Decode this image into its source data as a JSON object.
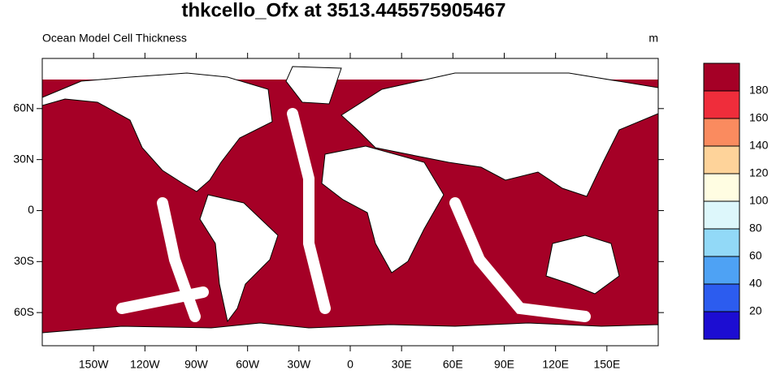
{
  "title": "thkcello_Ofx at 3513.445575905467",
  "left_string": "Ocean Model Cell Thickness",
  "right_string": "m",
  "map": {
    "xlim": [
      -180,
      180
    ],
    "ylim": [
      -79.5,
      89.5
    ],
    "xticks": [
      {
        "value": -150,
        "label": "150W"
      },
      {
        "value": -120,
        "label": "120W"
      },
      {
        "value": -90,
        "label": "90W"
      },
      {
        "value": -60,
        "label": "60W"
      },
      {
        "value": -30,
        "label": "30W"
      },
      0,
      {
        "value": 30,
        "label": "30E"
      },
      {
        "value": 60,
        "label": "60E"
      },
      {
        "value": 90,
        "label": "90E"
      },
      {
        "value": 120,
        "label": "120E"
      },
      {
        "value": 150,
        "label": "150E"
      }
    ],
    "yticks": [
      {
        "value": 60,
        "label": "60N"
      },
      {
        "value": 30,
        "label": "30N"
      },
      0,
      {
        "value": -30,
        "label": "30S"
      },
      {
        "value": -60,
        "label": "60S"
      }
    ],
    "ocean_color": "#a50026",
    "land_color": "#ffffff"
  },
  "colorbar": {
    "levels": [
      20,
      40,
      60,
      80,
      100,
      120,
      140,
      160,
      180
    ],
    "colors": [
      "#1c0dd2",
      "#2c5cef",
      "#4ea2f4",
      "#92d9f7",
      "#ddf7fb",
      "#fffde2",
      "#fed39a",
      "#fa8b5f",
      "#ef2d3b",
      "#a50026"
    ]
  }
}
